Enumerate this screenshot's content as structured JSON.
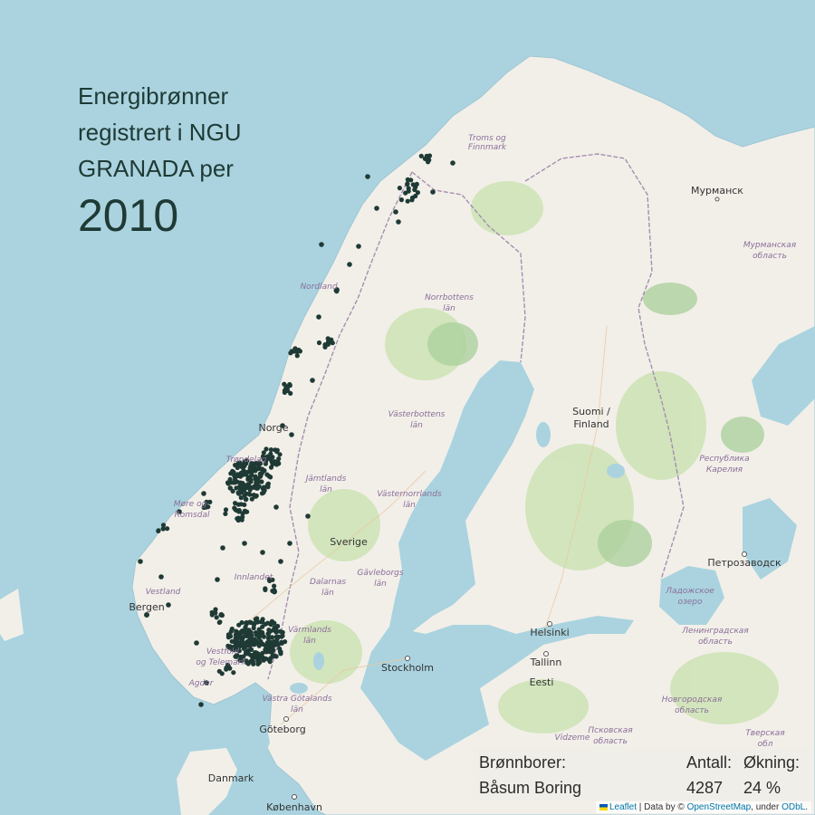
{
  "title": {
    "line1": "Energibrønner",
    "line2": "registrert i NGU",
    "line3": "GRANADA per",
    "year": "2010"
  },
  "stats": {
    "col1_header": "Brønnborer:",
    "col2_header": "Antall:",
    "col3_header": "Økning:",
    "driller": "Båsum Boring",
    "count": "4287",
    "increase": "24 %"
  },
  "attribution": {
    "leaflet": "Leaflet",
    "sep": "| Data by ©",
    "osm": "OpenStreetMap",
    "under": ", under",
    "odbl": "ODbL",
    "dot": "."
  },
  "labels": {
    "troms": "Troms og",
    "troms2": "Finnmark",
    "murmansk": "Мурманск",
    "murmansk_obl": "Мурманская",
    "murmansk_obl2": "область",
    "nordland": "Nordland",
    "norrbotten": "Norrbottens",
    "norrbotten2": "län",
    "vasterbotten": "Västerbottens",
    "vasterbotten2": "län",
    "suomi": "Suomi /",
    "finland": "Finland",
    "norge": "Norge",
    "trondelag": "Trøndelag",
    "jamtland": "Jämtlands",
    "jamtland2": "län",
    "vasternorrland": "Västernorrlands",
    "vasternorrland2": "län",
    "more": "Møre og",
    "romsdal": "Romsdal",
    "karelia": "Республика",
    "karelia2": "Карелия",
    "sverige": "Sverige",
    "gavleborg": "Gävleborgs",
    "gavleborg2": "län",
    "dalarna": "Dalarnas",
    "dalarna2": "län",
    "innlandet": "Innlandet",
    "vestland": "Vestland",
    "bergen": "Bergen",
    "petrozavodsk": "Петрозаводск",
    "ladoga": "Ладожское",
    "ladoga2": "озеро",
    "helsinki": "Helsinki",
    "varmland": "Värmlands",
    "varmland2": "län",
    "vestfold": "Vestfold",
    "telemark": "og Telemark",
    "leningrad": "Ленинградская",
    "leningrad2": "область",
    "tallinn": "Tallinn",
    "stockholm": "Stockholm",
    "eesti": "Eesti",
    "agder": "Agder",
    "vastra": "Västra Götalands",
    "vastra2": "län",
    "novgorod": "Новгородская",
    "novgorod2": "область",
    "goteborg": "Göteborg",
    "vidzeme": "Vidzeme",
    "pskov": "Псковская",
    "pskov2": "область",
    "tver": "Тверская",
    "tver2": "обл",
    "danmark": "Danmark",
    "kobenhavn": "København"
  },
  "colors": {
    "sea": "#aad3df",
    "land": "#f2efe9",
    "green": "#cde3b4",
    "forest": "#add19e",
    "border": "#a48fb0",
    "dot": "#1f3a35"
  }
}
